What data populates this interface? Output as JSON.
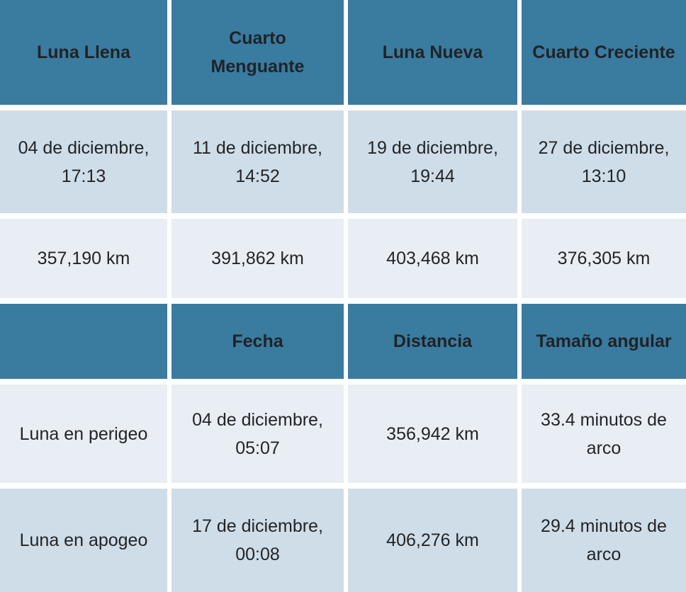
{
  "colors": {
    "header_bg": "#3a7ba0",
    "row_medium_bg": "#cfdde9",
    "row_light_bg": "#e9eef5",
    "gap": "#ffffff",
    "text": "#222426"
  },
  "chart_data": [
    {
      "type": "table",
      "columns": [
        "Luna Llena",
        "Cuarto\nMenguante",
        "Luna Nueva",
        "Cuarto Creciente"
      ],
      "rows": [
        [
          "04 de diciembre,\n17:13",
          "11 de diciembre,\n14:52",
          "19 de diciembre,\n19:44",
          "27 de diciembre,\n13:10"
        ],
        [
          "357,190 km",
          "391,862 km",
          "403,468 km",
          "376,305 km"
        ]
      ]
    },
    {
      "type": "table",
      "columns": [
        "",
        "Fecha",
        "Distancia",
        "Tamaño angular"
      ],
      "rows": [
        [
          "Luna en perigeo",
          "04 de diciembre,\n05:07",
          "356,942 km",
          "33.4 minutos de\narco"
        ],
        [
          "Luna en apogeo",
          "17 de diciembre,\n00:08",
          "406,276 km",
          "29.4 minutos de\narco"
        ]
      ]
    }
  ]
}
